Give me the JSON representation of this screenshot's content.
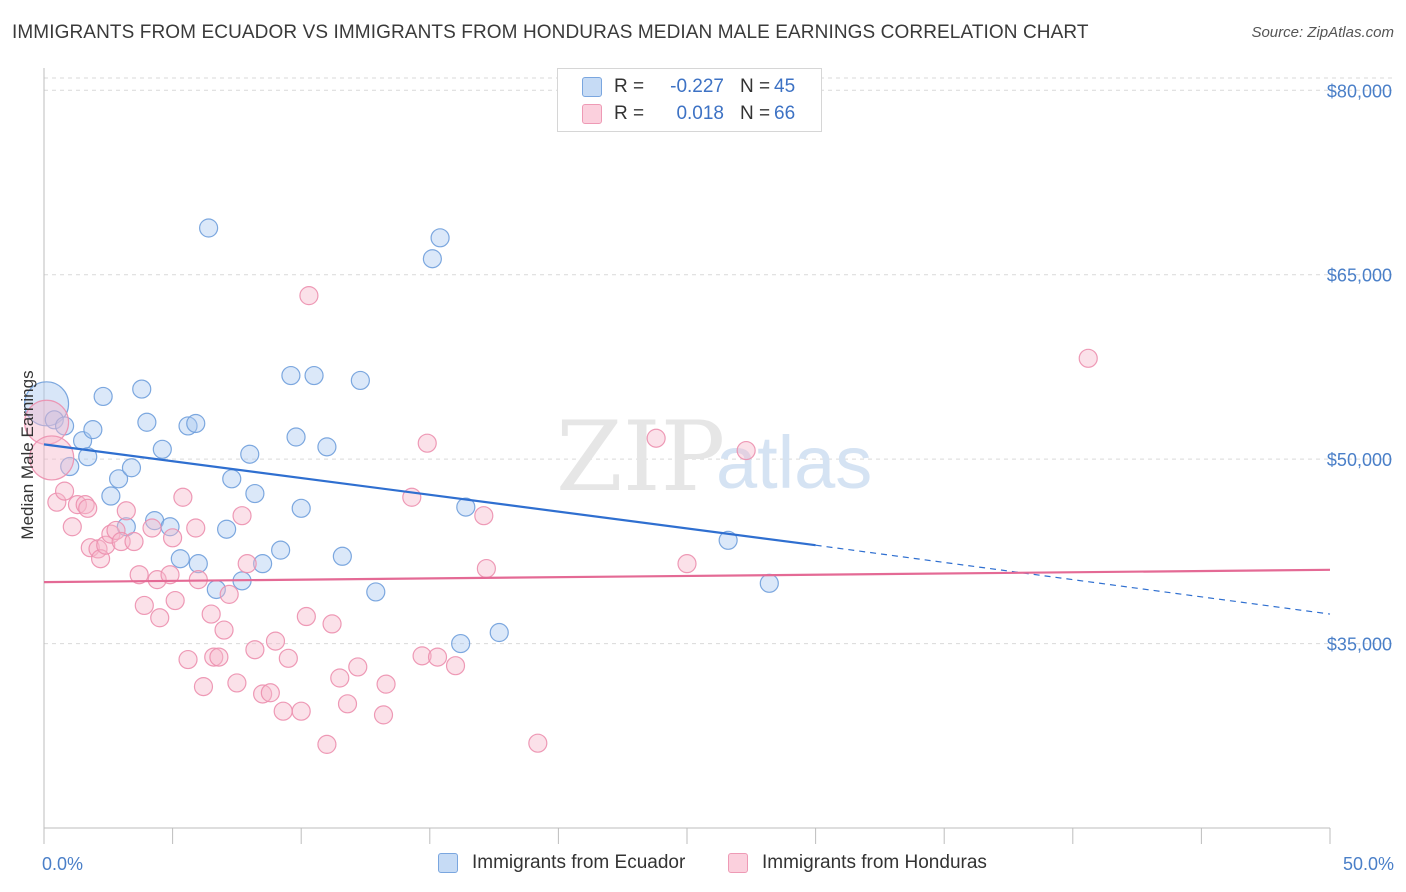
{
  "header": {
    "title": "IMMIGRANTS FROM ECUADOR VS IMMIGRANTS FROM HONDURAS MEDIAN MALE EARNINGS CORRELATION CHART",
    "source": "Source: ZipAtlas.com"
  },
  "watermark": {
    "zip": "ZIP",
    "atlas": "atlas"
  },
  "legend": {
    "rows": [
      {
        "r_label": "R =",
        "r_value": "-0.227",
        "n_label": "N =",
        "n_value": "45"
      },
      {
        "r_label": "R =",
        "r_value": "0.018",
        "n_label": "N =",
        "n_value": "66"
      }
    ]
  },
  "bottom_legend": {
    "ecuador": "Immigrants from Ecuador",
    "honduras": "Immigrants from Honduras"
  },
  "colors": {
    "ecuador_fill": "#a9c8f0",
    "ecuador_stroke": "#6f9fdc",
    "ecuador_line": "#2f6fd0",
    "honduras_fill": "#f6b8cb",
    "honduras_stroke": "#ec8fae",
    "honduras_line": "#e46a95",
    "axis_text": "#4a7fc8",
    "grid": "#d9d9d9"
  },
  "chart_data": {
    "type": "scatter",
    "title": "IMMIGRANTS FROM ECUADOR VS IMMIGRANTS FROM HONDURAS MEDIAN MALE EARNINGS CORRELATION CHART",
    "ylabel": "Median Male Earnings",
    "xlabel": "",
    "x_unit": "percent",
    "xlim": [
      0,
      50
    ],
    "ylim": [
      20000,
      81000
    ],
    "y_ticks": [
      35000,
      50000,
      65000,
      80000
    ],
    "y_tick_labels": [
      "$35,000",
      "$50,000",
      "$65,000",
      "$80,000"
    ],
    "x_tick_labels": [
      "0.0%",
      "50.0%"
    ],
    "grid": true,
    "series": [
      {
        "name": "Immigrants from Ecuador",
        "r": -0.227,
        "n": 45,
        "trend": {
          "x0": 0,
          "y0": 51200,
          "x1": 30,
          "y1": 43000,
          "x_dash_end": 50,
          "y_dash_end": 37400
        },
        "points": [
          {
            "x": 0.1,
            "y": 54500,
            "big": true
          },
          {
            "x": 0.4,
            "y": 53200
          },
          {
            "x": 0.8,
            "y": 52700
          },
          {
            "x": 1.0,
            "y": 49400
          },
          {
            "x": 1.5,
            "y": 51500
          },
          {
            "x": 1.7,
            "y": 50200
          },
          {
            "x": 1.9,
            "y": 52400
          },
          {
            "x": 2.3,
            "y": 55100
          },
          {
            "x": 2.6,
            "y": 47000
          },
          {
            "x": 2.9,
            "y": 48400
          },
          {
            "x": 3.2,
            "y": 44500
          },
          {
            "x": 3.4,
            "y": 49300
          },
          {
            "x": 3.8,
            "y": 55700
          },
          {
            "x": 4.0,
            "y": 53000
          },
          {
            "x": 4.3,
            "y": 45000
          },
          {
            "x": 4.6,
            "y": 50800
          },
          {
            "x": 4.9,
            "y": 44500
          },
          {
            "x": 5.3,
            "y": 41900
          },
          {
            "x": 5.6,
            "y": 52700
          },
          {
            "x": 5.9,
            "y": 52900
          },
          {
            "x": 6.0,
            "y": 41500
          },
          {
            "x": 6.4,
            "y": 68800
          },
          {
            "x": 6.7,
            "y": 39400
          },
          {
            "x": 7.1,
            "y": 44300
          },
          {
            "x": 7.3,
            "y": 48400
          },
          {
            "x": 7.7,
            "y": 40100
          },
          {
            "x": 8.0,
            "y": 50400
          },
          {
            "x": 8.2,
            "y": 47200
          },
          {
            "x": 8.5,
            "y": 41500
          },
          {
            "x": 9.2,
            "y": 42600
          },
          {
            "x": 9.6,
            "y": 56800
          },
          {
            "x": 9.8,
            "y": 51800
          },
          {
            "x": 10.0,
            "y": 46000
          },
          {
            "x": 10.5,
            "y": 56800
          },
          {
            "x": 11.0,
            "y": 51000
          },
          {
            "x": 11.6,
            "y": 42100
          },
          {
            "x": 12.3,
            "y": 56400
          },
          {
            "x": 12.9,
            "y": 39200
          },
          {
            "x": 15.1,
            "y": 66300
          },
          {
            "x": 15.4,
            "y": 68000
          },
          {
            "x": 16.2,
            "y": 35000
          },
          {
            "x": 16.4,
            "y": 46100
          },
          {
            "x": 17.7,
            "y": 35900
          },
          {
            "x": 26.6,
            "y": 43400
          },
          {
            "x": 28.2,
            "y": 39900
          }
        ]
      },
      {
        "name": "Immigrants from Honduras",
        "r": 0.018,
        "n": 66,
        "trend": {
          "x0": 0,
          "y0": 40000,
          "x1": 50,
          "y1": 41000
        },
        "points": [
          {
            "x": 0.1,
            "y": 53000,
            "big": true
          },
          {
            "x": 0.3,
            "y": 50100,
            "big": true
          },
          {
            "x": 0.5,
            "y": 46500
          },
          {
            "x": 0.8,
            "y": 47400
          },
          {
            "x": 1.1,
            "y": 44500
          },
          {
            "x": 1.3,
            "y": 46300
          },
          {
            "x": 1.6,
            "y": 46300
          },
          {
            "x": 1.7,
            "y": 46000
          },
          {
            "x": 1.8,
            "y": 42800
          },
          {
            "x": 2.1,
            "y": 42700
          },
          {
            "x": 2.2,
            "y": 41900
          },
          {
            "x": 2.4,
            "y": 43000
          },
          {
            "x": 2.6,
            "y": 43900
          },
          {
            "x": 2.8,
            "y": 44200
          },
          {
            "x": 3.0,
            "y": 43300
          },
          {
            "x": 3.2,
            "y": 45800
          },
          {
            "x": 3.5,
            "y": 43300
          },
          {
            "x": 3.7,
            "y": 40600
          },
          {
            "x": 3.9,
            "y": 38100
          },
          {
            "x": 4.2,
            "y": 44400
          },
          {
            "x": 4.4,
            "y": 40200
          },
          {
            "x": 4.5,
            "y": 37100
          },
          {
            "x": 4.9,
            "y": 40600
          },
          {
            "x": 5.0,
            "y": 43600
          },
          {
            "x": 5.1,
            "y": 38500
          },
          {
            "x": 5.4,
            "y": 46900
          },
          {
            "x": 5.6,
            "y": 33700
          },
          {
            "x": 5.9,
            "y": 44400
          },
          {
            "x": 6.0,
            "y": 40200
          },
          {
            "x": 6.2,
            "y": 31500
          },
          {
            "x": 6.5,
            "y": 37400
          },
          {
            "x": 6.6,
            "y": 33900
          },
          {
            "x": 6.8,
            "y": 33900
          },
          {
            "x": 7.0,
            "y": 36100
          },
          {
            "x": 7.2,
            "y": 39000
          },
          {
            "x": 7.5,
            "y": 31800
          },
          {
            "x": 7.7,
            "y": 45400
          },
          {
            "x": 7.9,
            "y": 41500
          },
          {
            "x": 8.2,
            "y": 34500
          },
          {
            "x": 8.5,
            "y": 30900
          },
          {
            "x": 8.8,
            "y": 31000
          },
          {
            "x": 9.0,
            "y": 35200
          },
          {
            "x": 9.3,
            "y": 29500
          },
          {
            "x": 9.5,
            "y": 33800
          },
          {
            "x": 10.0,
            "y": 29500
          },
          {
            "x": 10.2,
            "y": 37200
          },
          {
            "x": 10.3,
            "y": 63300
          },
          {
            "x": 11.0,
            "y": 26800
          },
          {
            "x": 11.2,
            "y": 36600
          },
          {
            "x": 11.5,
            "y": 32200
          },
          {
            "x": 11.8,
            "y": 30100
          },
          {
            "x": 12.2,
            "y": 33100
          },
          {
            "x": 13.2,
            "y": 29200
          },
          {
            "x": 13.3,
            "y": 31700
          },
          {
            "x": 14.3,
            "y": 46900
          },
          {
            "x": 14.7,
            "y": 34000
          },
          {
            "x": 14.9,
            "y": 51300
          },
          {
            "x": 15.3,
            "y": 33900
          },
          {
            "x": 16.0,
            "y": 33200
          },
          {
            "x": 17.1,
            "y": 45400
          },
          {
            "x": 17.2,
            "y": 41100
          },
          {
            "x": 19.2,
            "y": 26900
          },
          {
            "x": 23.8,
            "y": 51700
          },
          {
            "x": 25.0,
            "y": 41500
          },
          {
            "x": 27.3,
            "y": 50700
          },
          {
            "x": 40.6,
            "y": 58200
          }
        ]
      }
    ]
  }
}
